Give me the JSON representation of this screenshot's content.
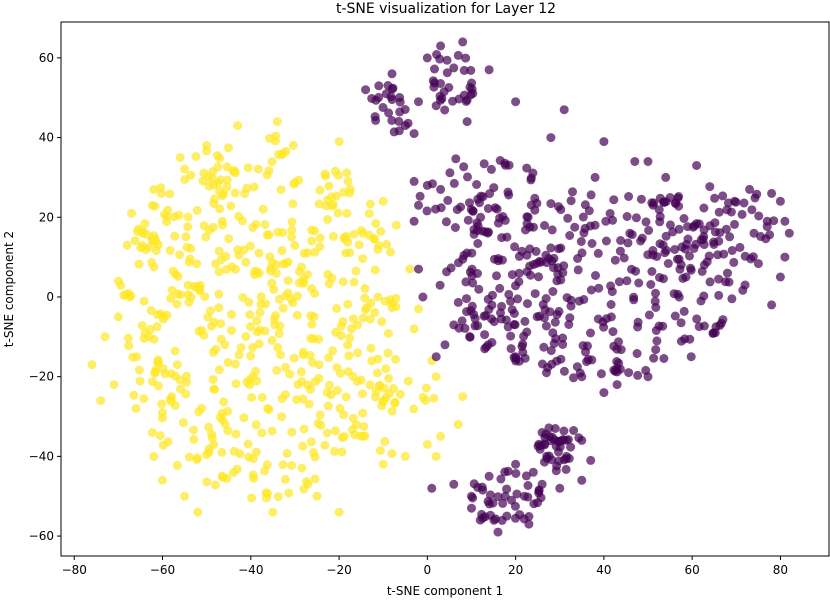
{
  "chart_data": {
    "type": "scatter",
    "title": "t-SNE visualization for Layer 12",
    "xlabel": "t-SNE component 1",
    "ylabel": "t-SNE component 2",
    "xlim": [
      -83,
      91
    ],
    "ylim": [
      -65,
      69
    ],
    "xticks": [
      -80,
      -60,
      -40,
      -20,
      0,
      20,
      40,
      60,
      80
    ],
    "yticks": [
      -60,
      -40,
      -20,
      0,
      20,
      40,
      60
    ],
    "grid": false,
    "legend": "none",
    "colors": {
      "yellow": "#fde725",
      "purple": "#440154"
    },
    "series": [
      {
        "color": "#fde725",
        "clusters": [
          {
            "cx": -38,
            "cy": -5,
            "rx": 32,
            "ry": 46,
            "n": 520,
            "seed": 11
          },
          {
            "cx": -8,
            "cy": -28,
            "rx": 10,
            "ry": 14,
            "n": 35,
            "seed": 12
          }
        ],
        "points": [
          [
            -76,
            -17
          ],
          [
            -74,
            -26
          ],
          [
            -70,
            -5
          ],
          [
            -71,
            -22
          ],
          [
            -66,
            -28
          ],
          [
            -62,
            -40
          ],
          [
            -60,
            -46
          ],
          [
            -55,
            -50
          ],
          [
            -52,
            -54
          ],
          [
            -35,
            -54
          ],
          [
            -20,
            -54
          ],
          [
            -25,
            -50
          ],
          [
            -10,
            -42
          ],
          [
            -5,
            -40
          ],
          [
            0,
            -37
          ],
          [
            2,
            -40
          ],
          [
            7,
            -32
          ],
          [
            8,
            -25
          ],
          [
            1,
            -16
          ],
          [
            2,
            -20
          ],
          [
            -3,
            -8
          ],
          [
            -2,
            -3
          ],
          [
            -4,
            7
          ],
          [
            -7,
            18
          ],
          [
            -10,
            24
          ],
          [
            -20,
            39
          ],
          [
            -34,
            44
          ],
          [
            -43,
            43
          ],
          [
            -50,
            38
          ],
          [
            -56,
            35
          ],
          [
            -62,
            27
          ],
          [
            -67,
            21
          ],
          [
            -68,
            13
          ],
          [
            -70,
            4
          ],
          [
            -73,
            -10
          ],
          [
            3,
            -35
          ]
        ]
      },
      {
        "color": "#440154",
        "clusters": [
          {
            "cx": 38,
            "cy": 3,
            "rx": 36,
            "ry": 24,
            "n": 330,
            "seed": 21
          },
          {
            "cx": 65,
            "cy": 15,
            "rx": 16,
            "ry": 14,
            "n": 60,
            "seed": 22
          },
          {
            "cx": 12,
            "cy": 26,
            "rx": 14,
            "ry": 10,
            "n": 50,
            "seed": 23
          },
          {
            "cx": 5,
            "cy": 54,
            "rx": 6,
            "ry": 8,
            "n": 30,
            "seed": 24
          },
          {
            "cx": -8,
            "cy": 48,
            "rx": 5,
            "ry": 7,
            "n": 22,
            "seed": 25
          },
          {
            "cx": 18,
            "cy": -50,
            "rx": 9,
            "ry": 7,
            "n": 40,
            "seed": 26
          },
          {
            "cx": 30,
            "cy": -38,
            "rx": 6,
            "ry": 6,
            "n": 40,
            "seed": 27
          }
        ],
        "points": [
          [
            3,
            63
          ],
          [
            8,
            64
          ],
          [
            0,
            60
          ],
          [
            14,
            57
          ],
          [
            -8,
            56
          ],
          [
            -11,
            53
          ],
          [
            -14,
            52
          ],
          [
            -2,
            49
          ],
          [
            2,
            48
          ],
          [
            -5,
            43
          ],
          [
            -3,
            41
          ],
          [
            20,
            49
          ],
          [
            31,
            47
          ],
          [
            9,
            44
          ],
          [
            28,
            40
          ],
          [
            40,
            39
          ],
          [
            38,
            30
          ],
          [
            47,
            34
          ],
          [
            50,
            34
          ],
          [
            54,
            30
          ],
          [
            61,
            33
          ],
          [
            73,
            27
          ],
          [
            78,
            26
          ],
          [
            80,
            24
          ],
          [
            81,
            19
          ],
          [
            82,
            16
          ],
          [
            81,
            10
          ],
          [
            80,
            5
          ],
          [
            78,
            -2
          ],
          [
            72,
            3
          ],
          [
            68,
            6
          ],
          [
            62,
            -1
          ],
          [
            50,
            -20
          ],
          [
            43,
            -22
          ],
          [
            40,
            -24
          ],
          [
            35,
            -20
          ],
          [
            27,
            -19
          ],
          [
            20,
            -15
          ],
          [
            13,
            -13
          ],
          [
            4,
            -12
          ],
          [
            2,
            -15
          ],
          [
            6,
            -7
          ],
          [
            -1,
            0
          ],
          [
            -2,
            7
          ],
          [
            -3,
            19
          ],
          [
            -2,
            23
          ],
          [
            -3,
            29
          ],
          [
            0,
            28
          ],
          [
            3,
            27
          ],
          [
            38,
            18
          ],
          [
            74,
            16
          ],
          [
            66,
            14
          ],
          [
            77,
            19
          ],
          [
            1,
            -48
          ],
          [
            6,
            -47
          ],
          [
            10,
            -53
          ],
          [
            16,
            -59
          ],
          [
            23,
            -57
          ],
          [
            20,
            -42
          ],
          [
            24,
            -44
          ],
          [
            26,
            -34
          ],
          [
            29,
            -33
          ],
          [
            35,
            -36
          ],
          [
            37,
            -41
          ],
          [
            35,
            -46
          ],
          [
            30,
            -48
          ],
          [
            26,
            -47
          ],
          [
            22,
            -50
          ],
          [
            18,
            -55
          ],
          [
            12,
            -56
          ],
          [
            14,
            -45
          ],
          [
            10,
            -50
          ]
        ]
      }
    ]
  }
}
